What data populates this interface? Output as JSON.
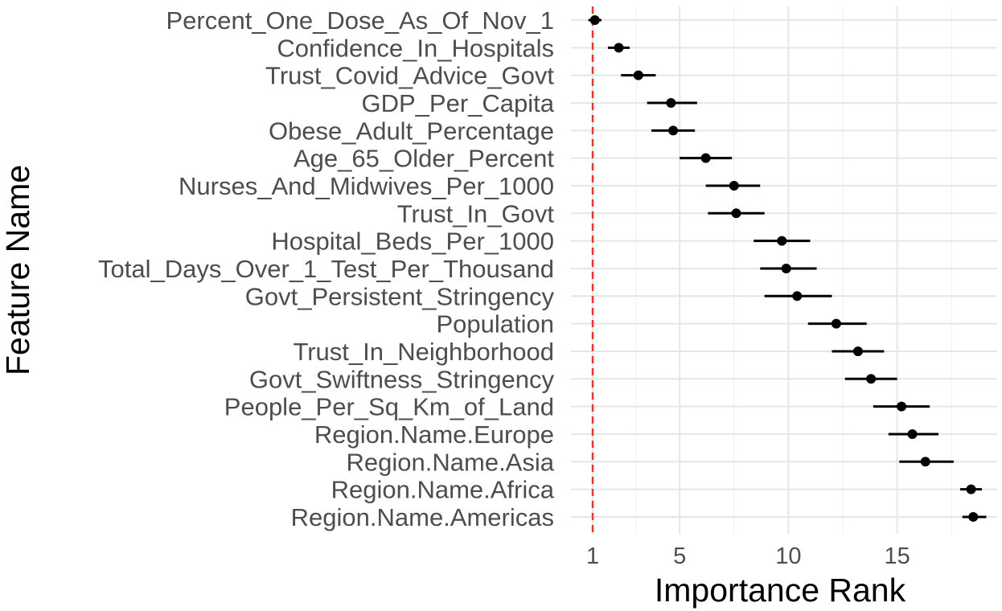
{
  "chart_data": {
    "type": "scatter",
    "subtype": "point-range (dot plot with horizontal error bars)",
    "title": "",
    "xlabel": "Importance Rank",
    "ylabel": "Feature Name",
    "xlim": [
      0.0,
      19.6
    ],
    "x_ticks": [
      1,
      5,
      10,
      15
    ],
    "x_tick_labels": [
      "1",
      "5",
      "10",
      "15"
    ],
    "grid": true,
    "legend": "none",
    "reference_line": {
      "x": 1,
      "style": "dashed",
      "color": "#e8372c"
    },
    "point_color": "#000000",
    "categories": [
      "Percent_One_Dose_As_Of_Nov_1",
      "Confidence_In_Hospitals",
      "Trust_Covid_Advice_Govt",
      "GDP_Per_Capita",
      "Obese_Adult_Percentage",
      "Age_65_Older_Percent",
      "Nurses_And_Midwives_Per_1000",
      "Trust_In_Govt",
      "Hospital_Beds_Per_1000",
      "Total_Days_Over_1_Test_Per_Thousand",
      "Govt_Persistent_Stringency",
      "Population",
      "Trust_In_Neighborhood",
      "Govt_Swiftness_Stringency",
      "People_Per_Sq_Km_of_Land",
      "Region.Name.Europe",
      "Region.Name.Asia",
      "Region.Name.Africa",
      "Region.Name.Americas"
    ],
    "values": [
      1.1,
      2.2,
      3.1,
      4.6,
      4.7,
      6.2,
      7.5,
      7.6,
      9.7,
      9.9,
      10.4,
      12.2,
      13.2,
      13.8,
      15.2,
      15.7,
      16.3,
      18.4,
      18.5
    ],
    "lower": [
      0.8,
      1.7,
      2.3,
      3.5,
      3.7,
      5.0,
      6.2,
      6.3,
      8.4,
      8.7,
      8.9,
      10.9,
      12.0,
      12.6,
      13.9,
      14.6,
      15.1,
      17.9,
      18.0
    ],
    "upper": [
      1.4,
      2.7,
      3.9,
      5.8,
      5.7,
      7.4,
      8.7,
      8.9,
      11.0,
      11.3,
      12.0,
      13.6,
      14.4,
      15.0,
      16.5,
      16.9,
      17.6,
      18.9,
      19.1
    ]
  }
}
